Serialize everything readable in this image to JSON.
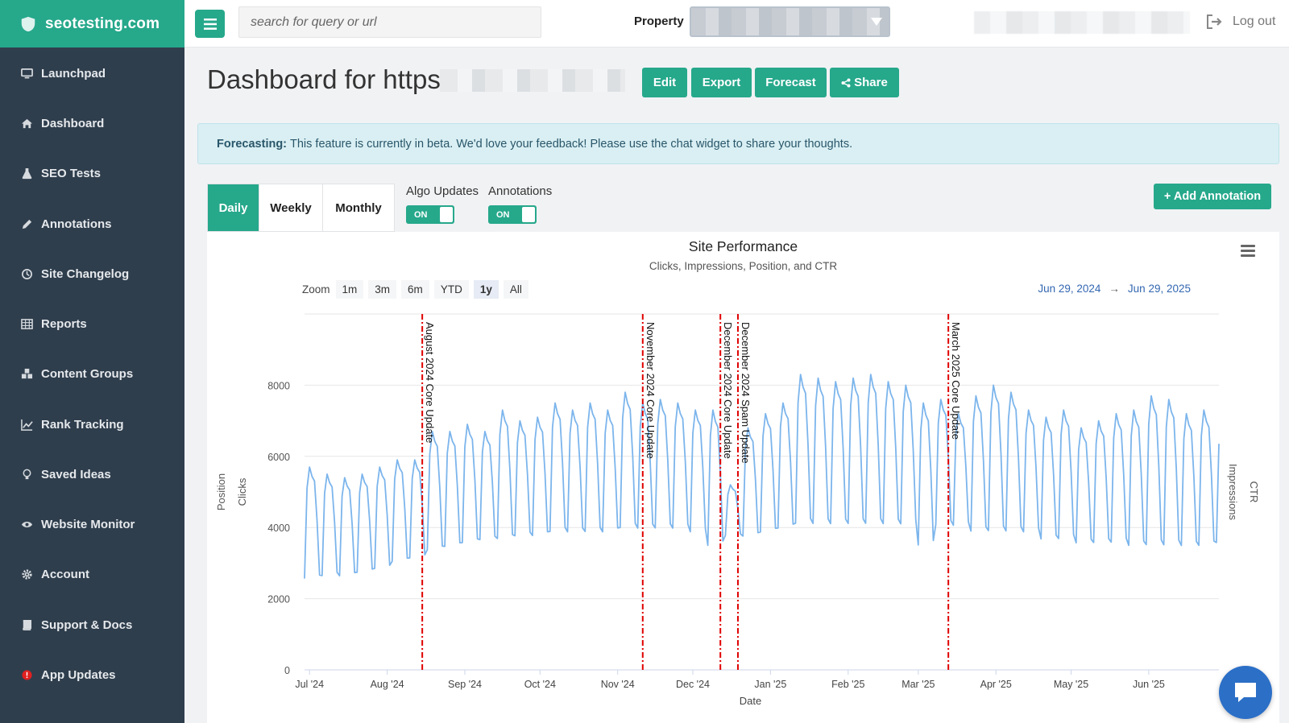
{
  "brand": {
    "name": "seotesting.com"
  },
  "sidebar": {
    "items": [
      {
        "label": "Launchpad",
        "icon": "monitor-icon"
      },
      {
        "label": "Dashboard",
        "icon": "home-icon"
      },
      {
        "label": "SEO Tests",
        "icon": "flask-icon"
      },
      {
        "label": "Annotations",
        "icon": "pencil-icon"
      },
      {
        "label": "Site Changelog",
        "icon": "history-icon"
      },
      {
        "label": "Reports",
        "icon": "table-icon"
      },
      {
        "label": "Content Groups",
        "icon": "cubes-icon"
      },
      {
        "label": "Rank Tracking",
        "icon": "line-chart-icon"
      },
      {
        "label": "Saved Ideas",
        "icon": "lightbulb-icon"
      },
      {
        "label": "Website Monitor",
        "icon": "eye-icon"
      },
      {
        "label": "Account",
        "icon": "gear-icon"
      },
      {
        "label": "Support & Docs",
        "icon": "book-icon"
      },
      {
        "label": "App Updates",
        "icon": "alert-dot-icon"
      }
    ]
  },
  "header": {
    "search_placeholder": "search for query or url",
    "property_label": "Property",
    "logout_label": "Log out"
  },
  "page": {
    "title": "Dashboard for https:",
    "actions": {
      "edit": "Edit",
      "export": "Export",
      "forecast": "Forecast",
      "share": "Share"
    }
  },
  "banner": {
    "bold": "Forecasting:",
    "text": "This feature is currently in beta. We'd love your feedback! Please use the chat widget to share your thoughts."
  },
  "controls": {
    "periods": [
      "Daily",
      "Weekly",
      "Monthly"
    ],
    "active_period": "Daily",
    "algo_label": "Algo Updates",
    "algo_state": "ON",
    "annotations_label": "Annotations",
    "annotations_state": "ON",
    "add_annotation": "Add Annotation"
  },
  "colors": {
    "accent": "#26a88b",
    "sidebar": "#2f3e4d",
    "series": "#7cb5ec",
    "annotation": "#e00000",
    "range_text": "#3367b1"
  },
  "chart_data": {
    "type": "line",
    "title": "Site Performance",
    "subtitle": "Clicks, Impressions, Position, and CTR",
    "zoom_label": "Zoom",
    "zoom_options": [
      "1m",
      "3m",
      "6m",
      "YTD",
      "1y",
      "All"
    ],
    "zoom_active": "1y",
    "range_from": "Jun 29, 2024",
    "range_to": "Jun 29, 2025",
    "xlabel": "Date",
    "ylabel_left": [
      "Position",
      "Clicks"
    ],
    "ylabel_right": [
      "Impressions",
      "CTR"
    ],
    "x_start": "2024-06-29",
    "x_end": "2025-06-29",
    "ylim": [
      0,
      10000
    ],
    "yticks": [
      0,
      2000,
      4000,
      6000,
      8000
    ],
    "xticks": [
      {
        "date": "2024-07-01",
        "label": "Jul '24"
      },
      {
        "date": "2024-08-01",
        "label": "Aug '24"
      },
      {
        "date": "2024-09-01",
        "label": "Sep '24"
      },
      {
        "date": "2024-10-01",
        "label": "Oct '24"
      },
      {
        "date": "2024-11-01",
        "label": "Nov '24"
      },
      {
        "date": "2024-12-01",
        "label": "Dec '24"
      },
      {
        "date": "2025-01-01",
        "label": "Jan '25"
      },
      {
        "date": "2025-02-01",
        "label": "Feb '25"
      },
      {
        "date": "2025-03-01",
        "label": "Mar '25"
      },
      {
        "date": "2025-04-01",
        "label": "Apr '25"
      },
      {
        "date": "2025-05-01",
        "label": "May '25"
      },
      {
        "date": "2025-06-01",
        "label": "Jun '25"
      }
    ],
    "annotations": [
      {
        "date": "2024-08-15",
        "label": "August 2024 Core Update"
      },
      {
        "date": "2024-11-11",
        "label": "November 2024 Core Update"
      },
      {
        "date": "2024-12-12",
        "label": "December 2024 Core Update"
      },
      {
        "date": "2024-12-19",
        "label": "December 2024 Spam Update"
      },
      {
        "date": "2025-03-13",
        "label": "March 2025 Core Update"
      }
    ],
    "series": [
      {
        "name": "Clicks",
        "weekly_peaks": [
          5700,
          5500,
          5400,
          5500,
          5700,
          5900,
          5900,
          6700,
          6700,
          6900,
          6700,
          7300,
          7000,
          7100,
          7500,
          7300,
          7500,
          7300,
          7800,
          7500,
          7600,
          7500,
          7300,
          7300,
          5200,
          6800,
          7200,
          7500,
          8300,
          8200,
          8100,
          8200,
          8300,
          8100,
          8000,
          7500,
          7600,
          7200,
          7700,
          8000,
          7800,
          7300,
          7100,
          7300,
          6800,
          7000,
          7200,
          7300,
          7700,
          7600,
          7200,
          7300,
          7000
        ],
        "weekly_troughs": [
          2400,
          2500,
          2500,
          2600,
          2700,
          2900,
          3000,
          3200,
          3300,
          3400,
          3500,
          3500,
          3600,
          3600,
          3700,
          3700,
          3700,
          3700,
          3800,
          3800,
          3800,
          3800,
          3700,
          3300,
          3700,
          3600,
          3700,
          3800,
          3900,
          3900,
          3900,
          3900,
          3900,
          3900,
          3900,
          3300,
          3900,
          3900,
          3700,
          3700,
          3700,
          3700,
          3500,
          3500,
          3400,
          3400,
          3400,
          3300,
          3300,
          3300,
          3300,
          3300,
          3400
        ]
      }
    ]
  }
}
